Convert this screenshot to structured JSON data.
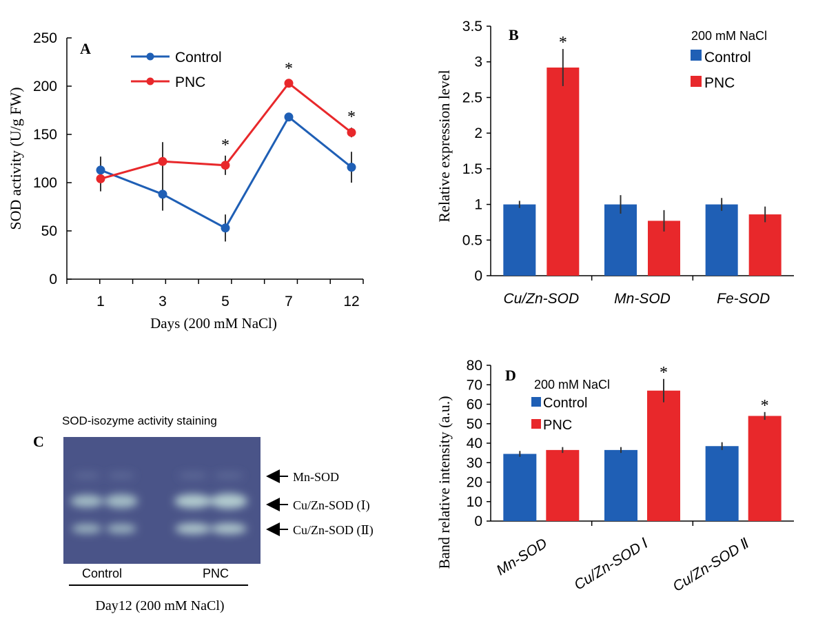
{
  "colors": {
    "control": "#1f5fb5",
    "pnc": "#e8282b",
    "axis": "#000000",
    "gel": "#4a5488",
    "band": "#a9c3c9"
  },
  "chart_data": [
    {
      "panel": "A",
      "type": "line",
      "categories": [
        "1",
        "3",
        "5",
        "7",
        "12"
      ],
      "series": [
        {
          "name": "Control",
          "values": [
            113,
            88,
            53,
            168,
            116
          ],
          "errors": [
            14,
            17,
            14,
            4,
            16
          ]
        },
        {
          "name": "PNC",
          "values": [
            104,
            122,
            118,
            203,
            152
          ],
          "errors": [
            13,
            20,
            10,
            4,
            5
          ]
        }
      ],
      "significance": [
        "",
        "",
        "*",
        "*",
        "*"
      ],
      "xlabel": "Days (200 mM NaCl)",
      "ylabel": "SOD activity (U/g FW)",
      "ylim": [
        0,
        250
      ],
      "yticks": [
        "0",
        "50",
        "100",
        "150",
        "200",
        "250"
      ]
    },
    {
      "panel": "B",
      "type": "bar",
      "legend_title": "200 mM NaCl",
      "categories": [
        "Cu/Zn-SOD",
        "Mn-SOD",
        "Fe-SOD"
      ],
      "series": [
        {
          "name": "Control",
          "values": [
            1.0,
            1.0,
            1.0
          ],
          "errors": [
            0.05,
            0.13,
            0.09
          ]
        },
        {
          "name": "PNC",
          "values": [
            2.92,
            0.77,
            0.86
          ],
          "errors": [
            0.26,
            0.15,
            0.11
          ]
        }
      ],
      "significance": [
        "*",
        "",
        ""
      ],
      "ylabel": "Relative expression level",
      "ylim": [
        0,
        3.5
      ],
      "yticks": [
        "0",
        "0.5",
        "1",
        "1.5",
        "2",
        "2.5",
        "3",
        "3.5"
      ]
    },
    {
      "panel": "D",
      "type": "bar",
      "legend_title": "200 mM NaCl",
      "categories": [
        "Mn-SOD",
        "Cu/Zn-SOD Ⅰ",
        "Cu/Zn-SOD Ⅱ"
      ],
      "series": [
        {
          "name": "Control",
          "values": [
            34.5,
            36.5,
            38.5
          ],
          "errors": [
            1.5,
            1.5,
            2
          ]
        },
        {
          "name": "PNC",
          "values": [
            36.5,
            67,
            54
          ],
          "errors": [
            1.5,
            6,
            2
          ]
        }
      ],
      "significance": [
        "",
        "*",
        "*"
      ],
      "ylabel": "Band relative intensity (a.u.)",
      "ylim": [
        0,
        80
      ],
      "yticks": [
        "0",
        "10",
        "20",
        "30",
        "40",
        "50",
        "60",
        "70",
        "80"
      ]
    }
  ],
  "gel": {
    "panel": "C",
    "title": "SOD-isozyme activity staining",
    "lane_labels": [
      "Control",
      "PNC"
    ],
    "caption": "Day12 (200 mM NaCl)",
    "band_labels": [
      "Mn-SOD",
      "Cu/Zn-SOD (Ⅰ)",
      "Cu/Zn-SOD (Ⅱ)"
    ]
  }
}
